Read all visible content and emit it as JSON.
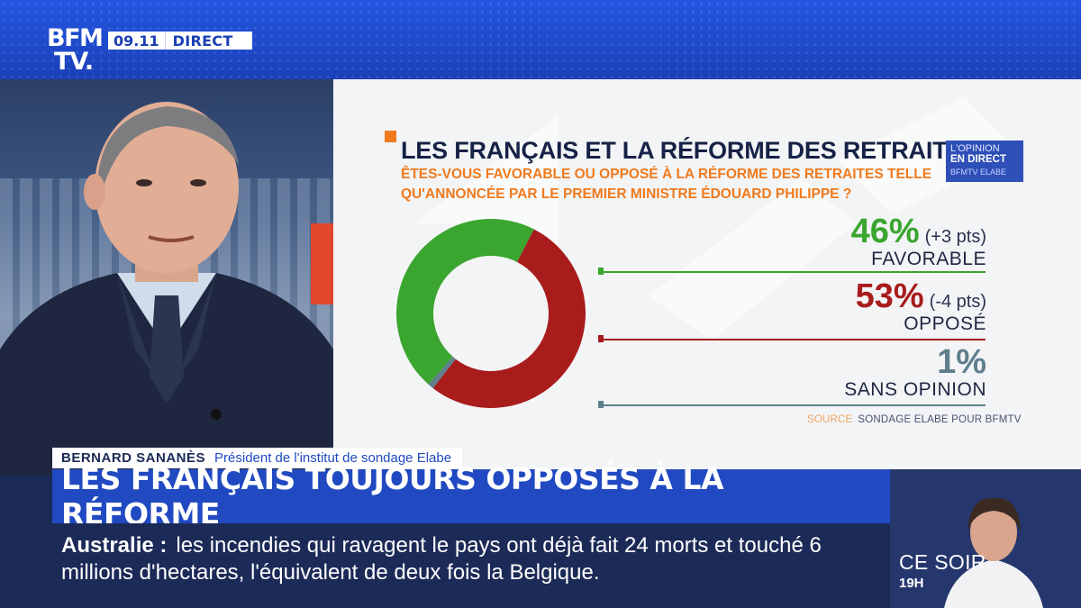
{
  "channel": {
    "logo_line1": "BFM",
    "logo_line2": "TV.",
    "time": "09.11",
    "live_label": "DIRECT"
  },
  "chart_panel": {
    "badge": {
      "line1": "L'OPINION",
      "line2": "EN DIRECT",
      "line3": "BFMTV ELABE"
    },
    "source_label": "SOURCE",
    "source_text": "SONDAGE ELABE POUR BFMTV"
  },
  "chart_data": {
    "type": "pie",
    "style": "donut",
    "title": "LES FRANÇAIS ET LA RÉFORME DES RETRAITES",
    "subtitle": "ÊTES-VOUS FAVORABLE OU OPPOSÉ À LA RÉFORME DES RETRAITES TELLE QU'ANNONCÉE PAR LE PREMIER MINISTRE ÉDOUARD PHILIPPE ?",
    "categories": [
      "FAVORABLE",
      "OPPOSÉ",
      "SANS OPINION"
    ],
    "values": [
      46,
      53,
      1
    ],
    "value_labels": [
      "46%",
      "53%",
      "1%"
    ],
    "changes": [
      "(+3 pts)",
      "(-4 pts)",
      ""
    ],
    "colors": [
      "#3aa52f",
      "#a81c1c",
      "#5f7f8c"
    ]
  },
  "lower_third": {
    "name": "BERNARD SANANÈS",
    "role": "Président de l'institut de sondage Elabe",
    "headline": "LES FRANÇAIS TOUJOURS OPPOSÉS À LA RÉFORME"
  },
  "ticker": {
    "topic": "Australie :",
    "text": "les incendies qui ravagent le pays ont déjà fait 24 morts et touché 6 millions d'hectares, l'équivalent de deux fois la Belgique."
  },
  "promo": {
    "label": "CE SOIR",
    "time": "19H"
  }
}
